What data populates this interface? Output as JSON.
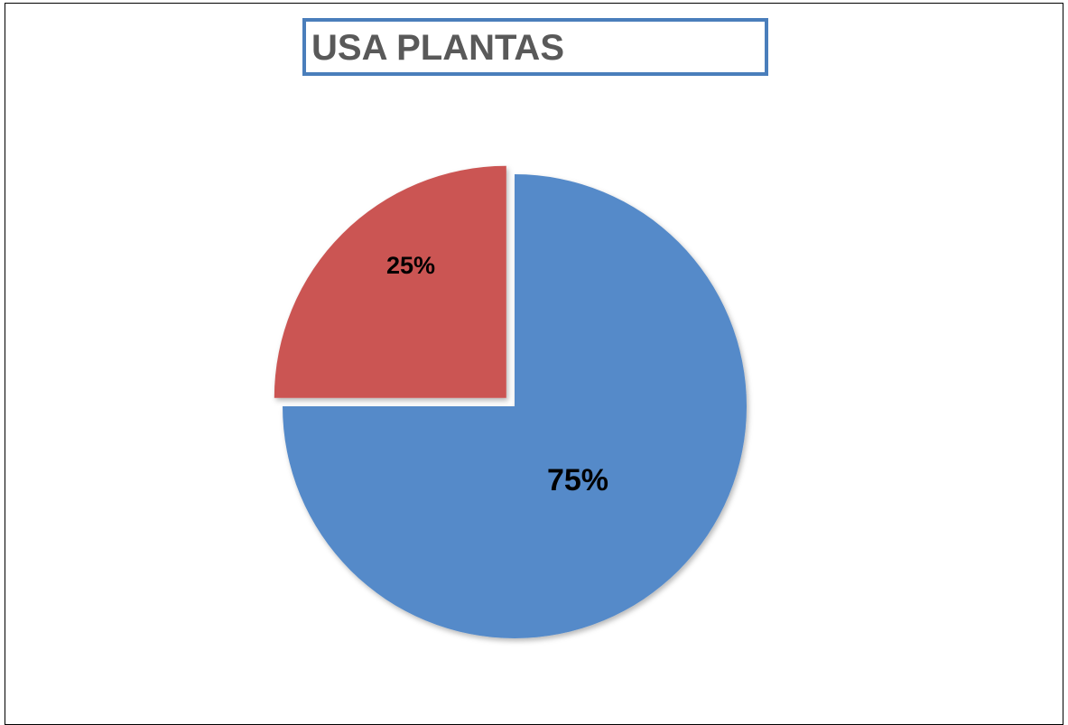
{
  "chart_data": {
    "type": "pie",
    "title": "USA PLANTAS",
    "slices": [
      {
        "label": "75%",
        "value": 75,
        "color": "#558ac9",
        "exploded": false
      },
      {
        "label": "25%",
        "value": 25,
        "color": "#cb5552",
        "exploded": true
      }
    ],
    "legend": "none",
    "start_angle_deg": 0,
    "direction": "clockwise"
  }
}
